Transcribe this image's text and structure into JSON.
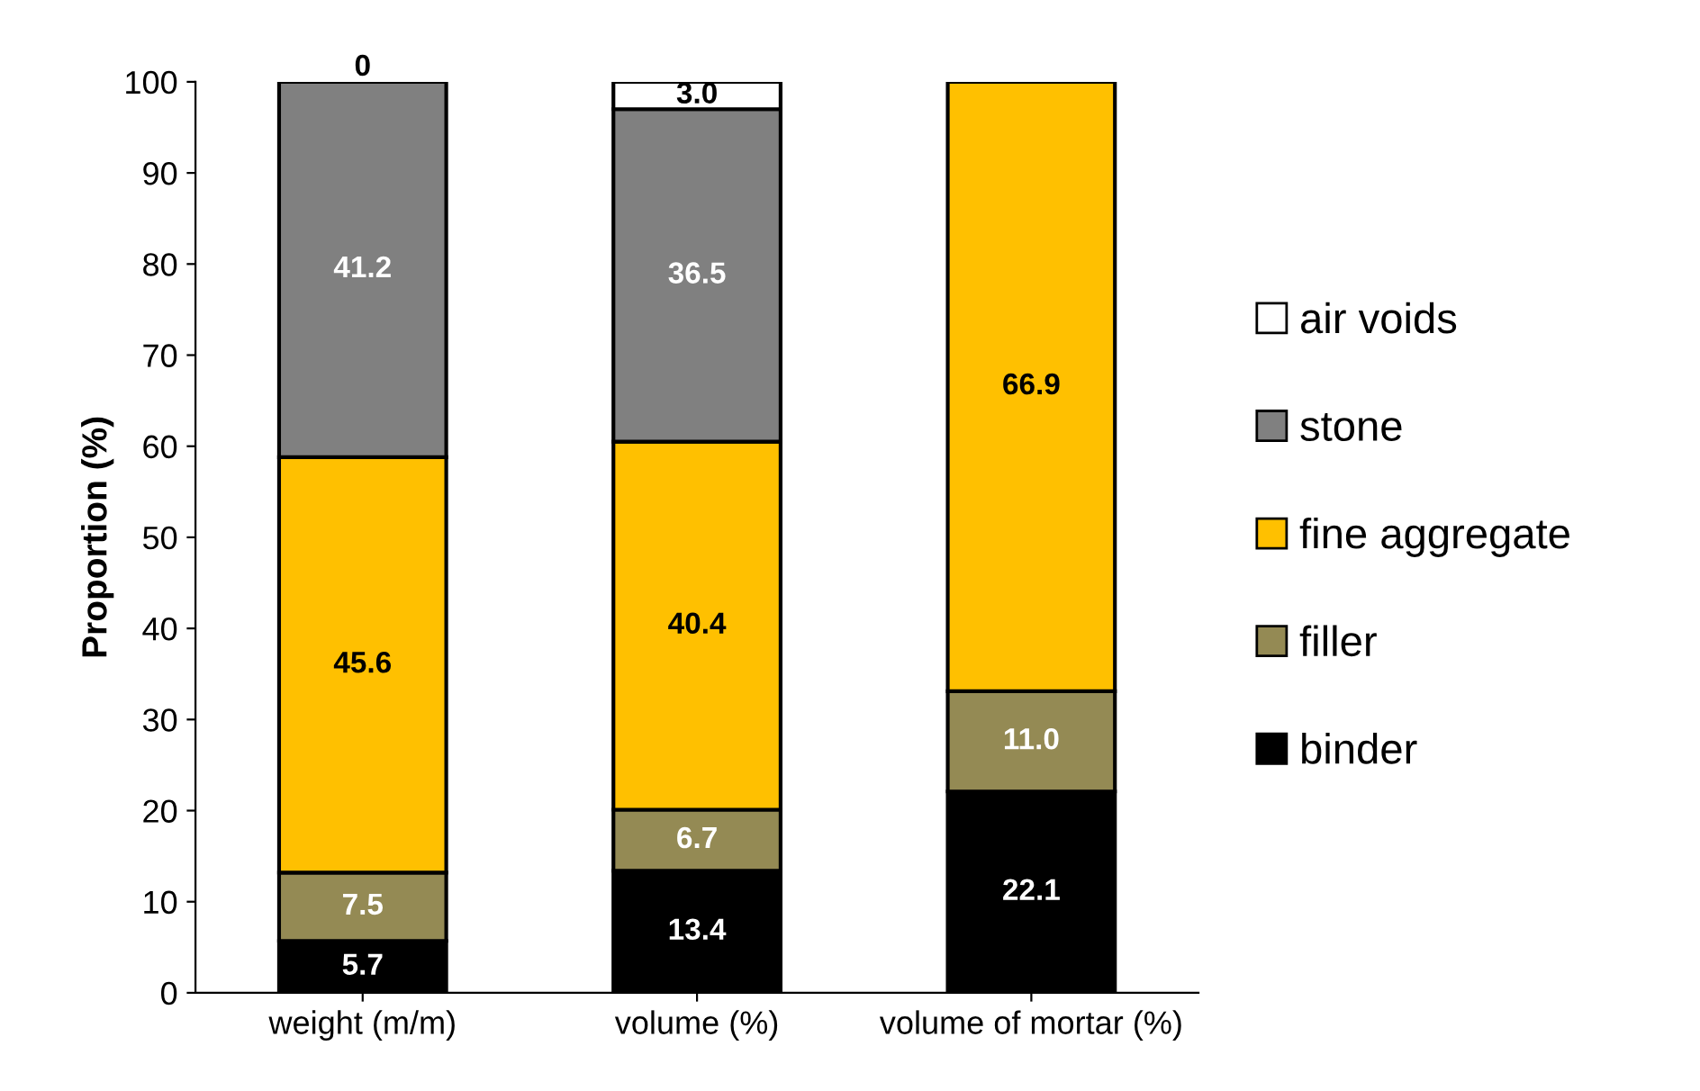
{
  "chart_data": {
    "type": "bar",
    "stacked": true,
    "ylabel": "Proportion (%)",
    "categories": [
      "weight (m/m)",
      "volume (%)",
      "volume of mortar (%)"
    ],
    "ylim": [
      0,
      100
    ],
    "yticks": [
      0,
      10,
      20,
      30,
      40,
      50,
      60,
      70,
      80,
      90,
      100
    ],
    "grid": false,
    "legend": "right",
    "series": [
      {
        "name": "binder",
        "color": "#000000",
        "values": [
          5.7,
          13.4,
          22.1
        ],
        "value_labels": [
          "5.7",
          "13.4",
          "22.1"
        ]
      },
      {
        "name": "filler",
        "color": "#948a54",
        "values": [
          7.5,
          6.7,
          11.0
        ],
        "value_labels": [
          "7.5",
          "6.7",
          "11.0"
        ]
      },
      {
        "name": "fine aggregate",
        "color": "#ffc000",
        "values": [
          45.6,
          40.4,
          66.9
        ],
        "value_labels": [
          "45.6",
          "40.4",
          "66.9"
        ]
      },
      {
        "name": "stone",
        "color": "#808080",
        "values": [
          41.2,
          36.5,
          null
        ],
        "value_labels": [
          "41.2",
          "36.5",
          null
        ]
      },
      {
        "name": "air voids",
        "color": "#ffffff",
        "values": [
          0,
          3.0,
          null
        ],
        "value_labels": [
          "0",
          "3.0",
          null
        ]
      }
    ]
  }
}
